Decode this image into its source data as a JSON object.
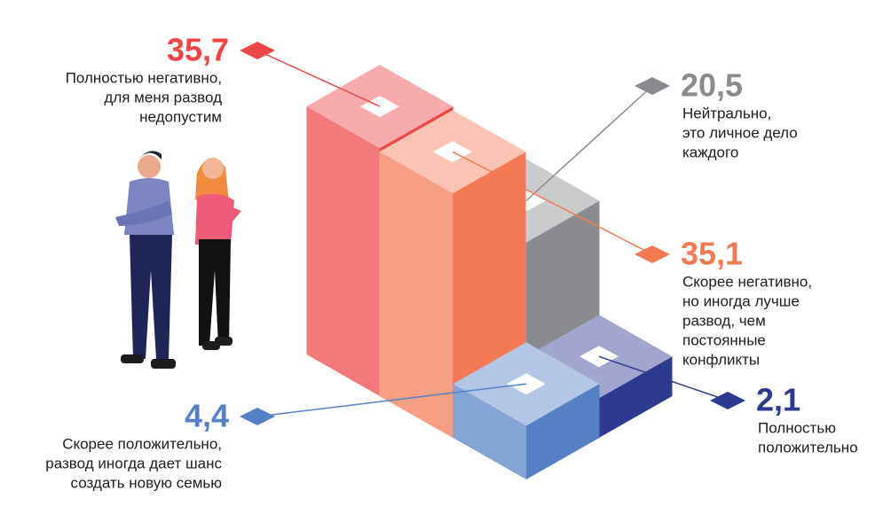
{
  "chart_data": {
    "type": "isometric-bar",
    "categories": [
      [
        "Полностью негативно,",
        "для меня развод",
        "недопустим"
      ],
      [
        "Нейтрально,",
        "это личное дело",
        "каждого"
      ],
      [
        "Скорее негативно,",
        "но иногда лучше",
        "развод, чем",
        "постоянные",
        "конфликты"
      ],
      [
        "Скорее положительно,",
        "развод иногда дает шанс",
        "создать новую семью"
      ],
      [
        "Полностью",
        "положительно"
      ]
    ],
    "values": [
      35.7,
      20.5,
      35.1,
      4.4,
      2.1
    ],
    "value_labels": [
      "35,7",
      "20,5",
      "35,1",
      "4,4",
      "2,1"
    ],
    "colors": [
      "#ee4547",
      "#8a8b8e",
      "#f47a55",
      "#5680c6",
      "#2c3a8f"
    ]
  }
}
